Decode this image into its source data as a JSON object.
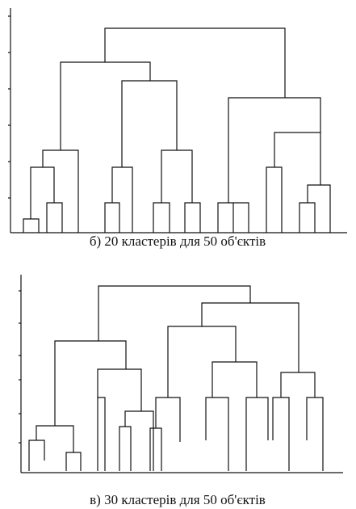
{
  "captions": [
    "б) 20 кластерів для 50 об'єктів",
    "в) 30 кластерів для 50 об'єктів"
  ]
}
